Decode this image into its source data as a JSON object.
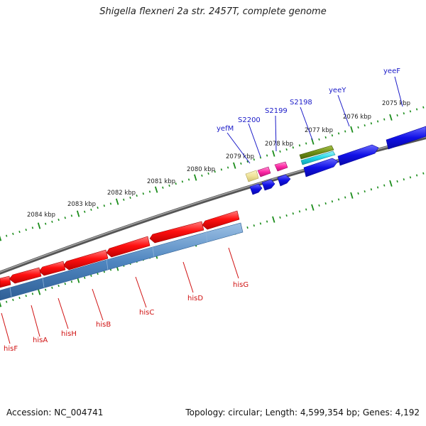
{
  "title": "Shigella flexneri 2a str. 2457T, complete genome",
  "footer": {
    "accession_label": "Accession:",
    "accession": "NC_004741",
    "topology_label": "Topology:",
    "topology": "circular",
    "length_label": "Length:",
    "length": "4,599,354 bp",
    "genes_label": "Genes:",
    "genes": "4,192"
  },
  "colors": {
    "backbone": "#777777",
    "tick": "#1a8c1a",
    "forward_gene_label": "#1a1ac8",
    "reverse_gene_label": "#d01010",
    "red_gene": "#ff1010",
    "steelblue_gene": "#4f86c0",
    "blue_gene": "#1010e6",
    "magenta_gene": "#ff2aa6",
    "khaki_gene": "#efe39a",
    "olive_gene": "#6f8f16",
    "cyan_gene": "#20d6e6"
  },
  "scale_labels": [
    "2075 kbp",
    "2076 kbp",
    "2077 kbp",
    "2078 kbp",
    "2079 kbp",
    "2080 kbp",
    "2081 kbp",
    "2082 kbp",
    "2083 kbp",
    "2084 kbp"
  ],
  "forward_genes": [
    "yeeF",
    "yeeY",
    "S2198",
    "S2199",
    "S2200",
    "yefM"
  ],
  "reverse_genes": [
    "hisG",
    "hisD",
    "hisC",
    "hisB",
    "hisH",
    "hisA",
    "hisF"
  ]
}
